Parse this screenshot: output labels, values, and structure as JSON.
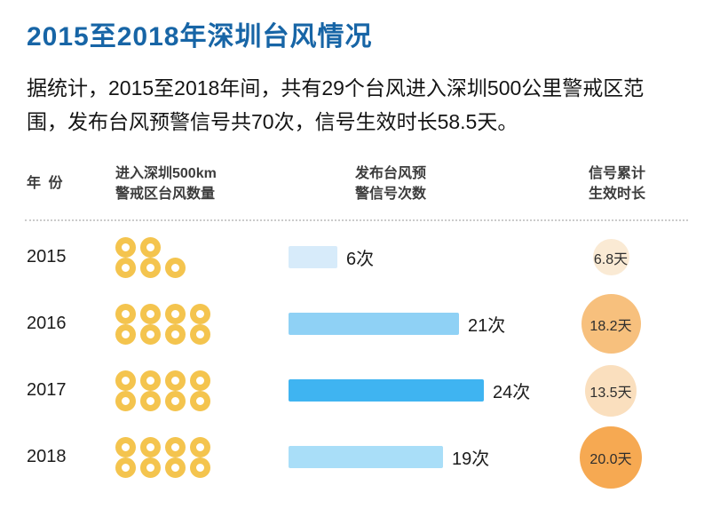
{
  "title": "2015至2018年深圳台风情况",
  "intro": {
    "line1": "据统计，2015至2018年间，共有29个台风进入深圳500公里警戒区范",
    "line2": "围，发布台风预警信号共70次，信号生效时长58.5天。"
  },
  "table": {
    "header": {
      "year": "年 份",
      "typhoons_line1": "进入深圳500km",
      "typhoons_line2": "警戒区台风数量",
      "warnings_line1": "发布台风预",
      "warnings_line2": "警信号次数",
      "duration_line1": "信号累计",
      "duration_line2": "生效时长"
    }
  },
  "chart_data": {
    "type": "table",
    "title": "2015至2018年深圳台风情况",
    "categories": [
      "2015",
      "2016",
      "2017",
      "2018"
    ],
    "series": [
      {
        "name": "进入深圳500km警戒区台风数量",
        "unit": "个",
        "glyph": "typhoon-donut",
        "values": [
          5,
          8,
          8,
          8
        ]
      },
      {
        "name": "发布台风预警信号次数",
        "unit": "次",
        "glyph": "bar",
        "values": [
          6,
          21,
          24,
          19
        ]
      },
      {
        "name": "信号累计生效时长",
        "unit": "天",
        "glyph": "bubble",
        "values": [
          6.8,
          18.2,
          13.5,
          20.0
        ]
      }
    ],
    "totals": {
      "typhoons": 29,
      "warnings": 70,
      "duration_days": 58.5
    },
    "legend_position": "none",
    "grid": false
  },
  "colors": {
    "title_blue": "#1765A6",
    "donut_yellow": "#F4C44E",
    "bars": [
      "#D7EBFA",
      "#8FD1F5",
      "#3FB4F1",
      "#A9DEF8"
    ],
    "circles": [
      "#FAEAD4",
      "#F7C07D",
      "#FADFBE",
      "#F6A952"
    ],
    "divider_gray": "#CBCBCB",
    "text_dark": "#1C1C1C"
  }
}
